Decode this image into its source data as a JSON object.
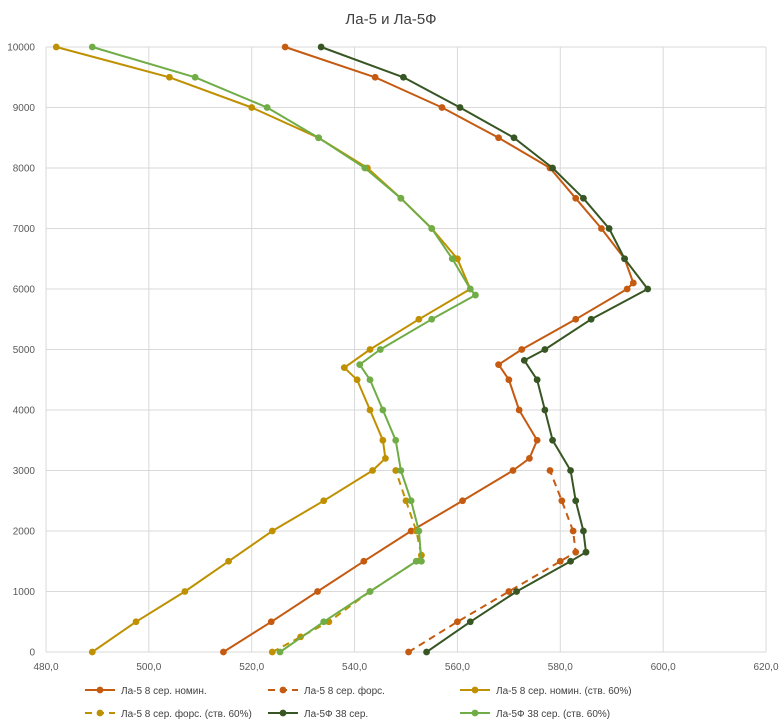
{
  "chart_data": {
    "type": "line",
    "title": "Ла-5 и Ла-5Ф",
    "xlabel": "",
    "ylabel": "",
    "xlim": [
      480,
      620
    ],
    "ylim": [
      0,
      10000
    ],
    "x_ticks": [
      "480,0",
      "500,0",
      "520,0",
      "540,0",
      "560,0",
      "580,0",
      "600,0",
      "620,0"
    ],
    "y_ticks": [
      "0",
      "1000",
      "2000",
      "3000",
      "4000",
      "5000",
      "6000",
      "7000",
      "8000",
      "9000",
      "10000"
    ],
    "grid": true,
    "legend_position": "bottom",
    "series": [
      {
        "name": "Ла-5 8 сер. номин.",
        "color": "#C55A11",
        "dash": "solid",
        "points": [
          [
            514.5,
            0
          ],
          [
            523.8,
            500
          ],
          [
            532.8,
            1000
          ],
          [
            541.8,
            1500
          ],
          [
            551.0,
            2000
          ],
          [
            561.0,
            2500
          ],
          [
            570.8,
            3000
          ],
          [
            574.0,
            3200
          ],
          [
            575.5,
            3500
          ],
          [
            572.0,
            4000
          ],
          [
            570.0,
            4500
          ],
          [
            568.0,
            4750
          ],
          [
            572.5,
            5000
          ],
          [
            583.0,
            5500
          ],
          [
            593.0,
            6000
          ],
          [
            594.2,
            6100
          ],
          [
            592.5,
            6500
          ],
          [
            588.0,
            7000
          ],
          [
            583.0,
            7500
          ],
          [
            578.0,
            8000
          ],
          [
            568.0,
            8500
          ],
          [
            557.0,
            9000
          ],
          [
            544.0,
            9500
          ],
          [
            526.5,
            10000
          ]
        ]
      },
      {
        "name": "Ла-5 8 сер. форс.",
        "color": "#C55A11",
        "dash": "dashed",
        "points": [
          [
            550.5,
            0
          ],
          [
            560.0,
            500
          ],
          [
            570.0,
            1000
          ],
          [
            580.0,
            1500
          ],
          [
            583.0,
            1650
          ],
          [
            582.5,
            2000
          ],
          [
            580.3,
            2500
          ],
          [
            578.0,
            3000
          ]
        ]
      },
      {
        "name": "Ла-5 8 сер. номин. (ств. 60%)",
        "color": "#BF9000",
        "dash": "solid",
        "points": [
          [
            489.0,
            0
          ],
          [
            497.5,
            500
          ],
          [
            507.0,
            1000
          ],
          [
            515.5,
            1500
          ],
          [
            524.0,
            2000
          ],
          [
            534.0,
            2500
          ],
          [
            543.5,
            3000
          ],
          [
            546.0,
            3200
          ],
          [
            545.5,
            3500
          ],
          [
            543.0,
            4000
          ],
          [
            540.5,
            4500
          ],
          [
            538.0,
            4700
          ],
          [
            543.0,
            5000
          ],
          [
            552.5,
            5500
          ],
          [
            562.5,
            6000
          ],
          [
            560.0,
            6500
          ],
          [
            555.0,
            7000
          ],
          [
            549.0,
            7500
          ],
          [
            542.5,
            8000
          ],
          [
            533.0,
            8500
          ],
          [
            520.0,
            9000
          ],
          [
            504.0,
            9500
          ],
          [
            482.0,
            10000
          ]
        ]
      },
      {
        "name": "Ла-5 8 сер. форс. (ств. 60%)",
        "color": "#BF9000",
        "dash": "dashed",
        "points": [
          [
            524.0,
            0
          ],
          [
            529.5,
            250
          ],
          [
            535.0,
            500
          ],
          [
            543.0,
            1000
          ],
          [
            552.0,
            1500
          ],
          [
            553.0,
            1600
          ],
          [
            552.0,
            2000
          ],
          [
            550.0,
            2500
          ],
          [
            548.0,
            3000
          ]
        ]
      },
      {
        "name": "Ла-5Ф 38 сер.",
        "color": "#375623",
        "dash": "solid",
        "points": [
          [
            554.0,
            0
          ],
          [
            562.5,
            500
          ],
          [
            571.5,
            1000
          ],
          [
            582.0,
            1500
          ],
          [
            585.0,
            1650
          ],
          [
            584.5,
            2000
          ],
          [
            583.0,
            2500
          ],
          [
            582.0,
            3000
          ],
          [
            578.5,
            3500
          ],
          [
            577.0,
            4000
          ],
          [
            575.5,
            4500
          ],
          [
            573.0,
            4820
          ],
          [
            577.0,
            5000
          ],
          [
            586.0,
            5500
          ],
          [
            597.0,
            6000
          ],
          [
            592.5,
            6500
          ],
          [
            589.5,
            7000
          ],
          [
            584.5,
            7500
          ],
          [
            578.5,
            8000
          ],
          [
            571.0,
            8500
          ],
          [
            560.5,
            9000
          ],
          [
            549.5,
            9500
          ],
          [
            533.5,
            10000
          ]
        ]
      },
      {
        "name": "Ла-5Ф 38 сер. (ств. 60%)",
        "color": "#70AD47",
        "dash": "solid",
        "points": [
          [
            525.5,
            0
          ],
          [
            534.0,
            500
          ],
          [
            543.0,
            1000
          ],
          [
            552.0,
            1500
          ],
          [
            553.0,
            1500
          ],
          [
            552.5,
            2000
          ],
          [
            551.0,
            2500
          ],
          [
            549.0,
            3000
          ],
          [
            548.0,
            3500
          ],
          [
            545.5,
            4000
          ],
          [
            543.0,
            4500
          ],
          [
            541.0,
            4750
          ],
          [
            545.0,
            5000
          ],
          [
            555.0,
            5500
          ],
          [
            563.5,
            5900
          ],
          [
            562.5,
            6000
          ],
          [
            559.0,
            6500
          ],
          [
            555.0,
            7000
          ],
          [
            549.0,
            7500
          ],
          [
            542.0,
            8000
          ],
          [
            533.0,
            8500
          ],
          [
            523.0,
            9000
          ],
          [
            509.0,
            9500
          ],
          [
            489.0,
            10000
          ]
        ]
      }
    ]
  }
}
